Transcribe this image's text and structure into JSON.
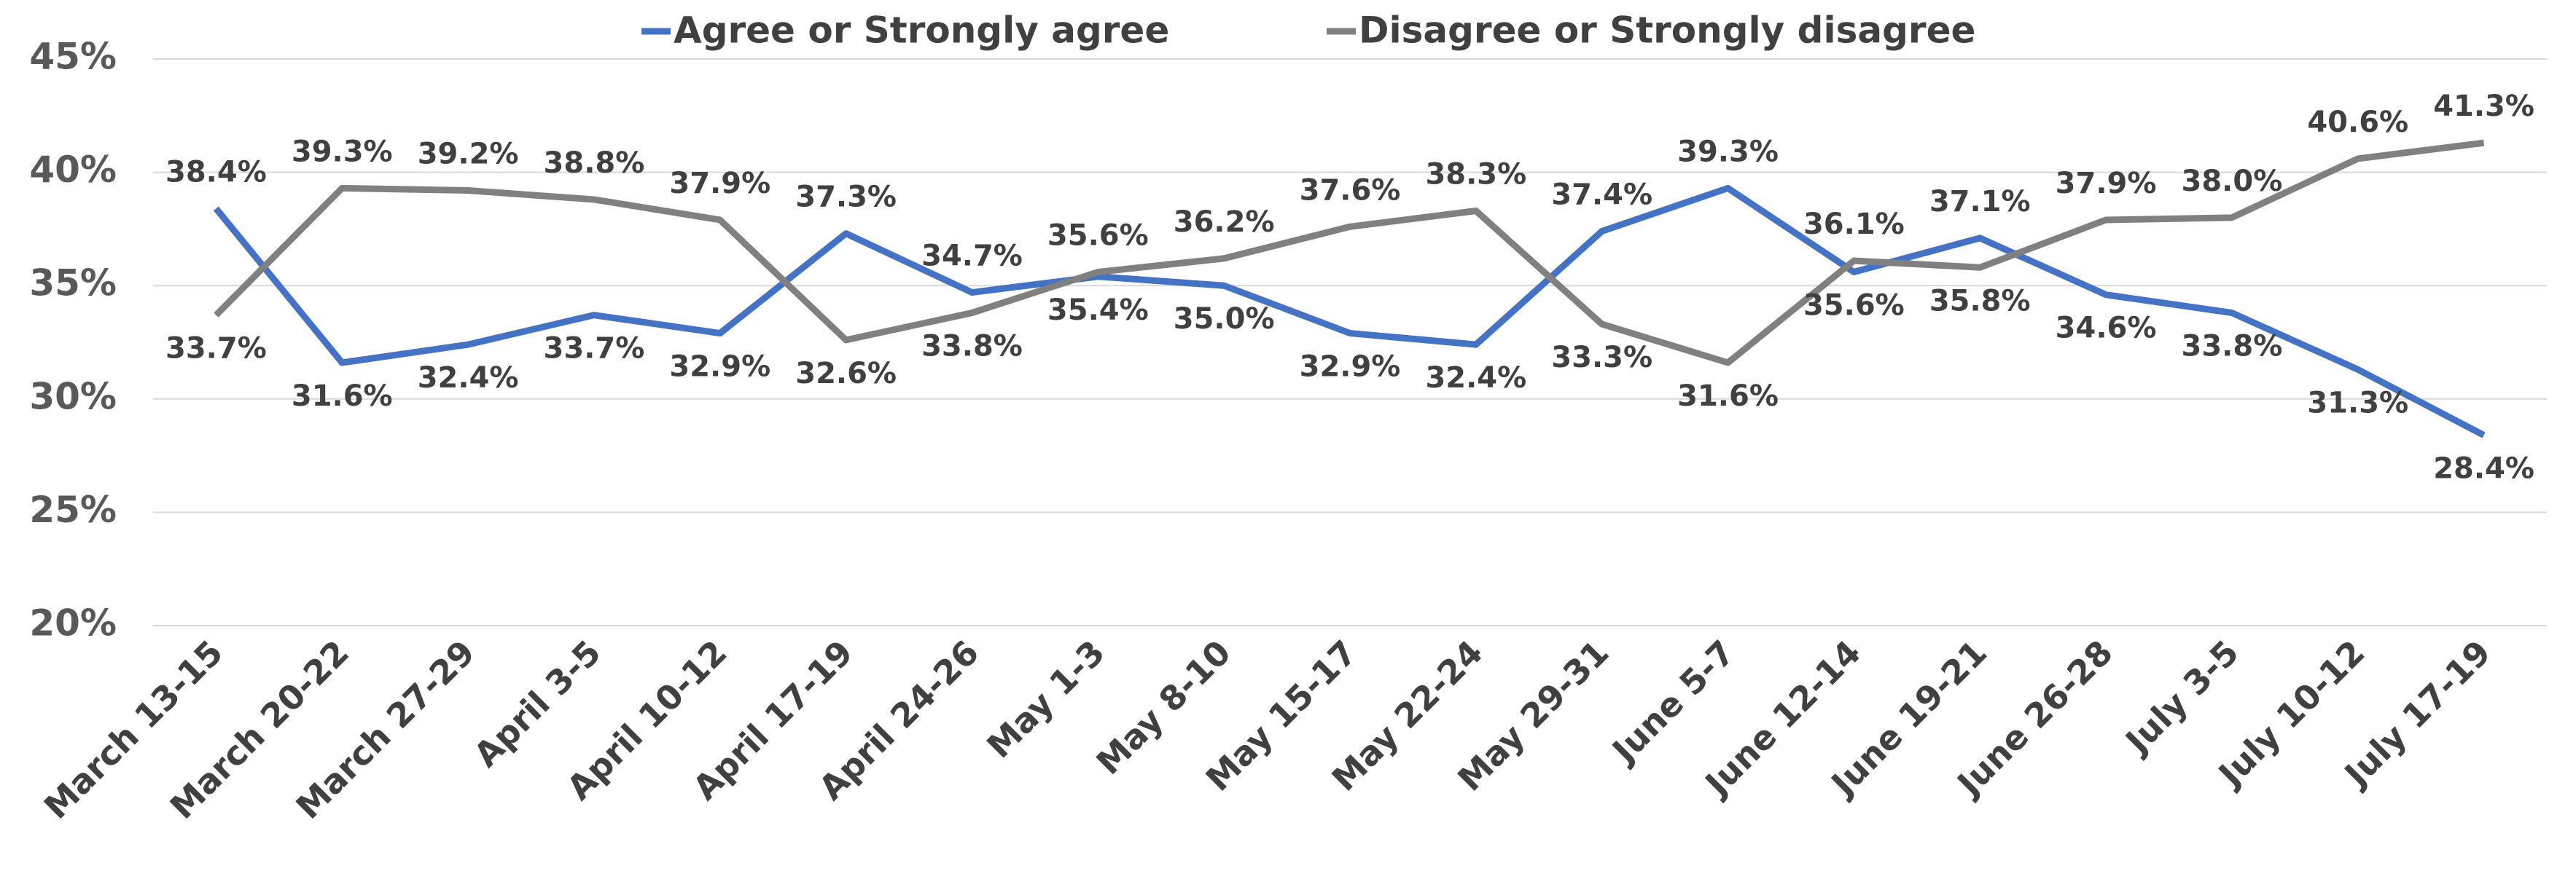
{
  "chart_data": {
    "type": "line",
    "categories": [
      "March 13-15",
      "March 20-22",
      "March 27-29",
      "April 3-5",
      "April 10-12",
      "April 17-19",
      "April 24-26",
      "May 1-3",
      "May 8-10",
      "May 15-17",
      "May 22-24",
      "May 29-31",
      "June 5-7",
      "June 12-14",
      "June 19-21",
      "June 26-28",
      "July 3-5",
      "July 10-12",
      "July 17-19"
    ],
    "series": [
      {
        "name": "Agree or Strongly agree",
        "color": "#4472c4",
        "values": [
          38.4,
          31.6,
          32.4,
          33.7,
          32.9,
          37.3,
          34.7,
          35.4,
          35.0,
          32.9,
          32.4,
          37.4,
          39.3,
          35.6,
          37.1,
          34.6,
          33.8,
          31.3,
          28.4
        ],
        "value_labels": [
          "38.4%",
          "31.6%",
          "32.4%",
          "33.7%",
          "32.9%",
          "37.3%",
          "34.7%",
          "35.4%",
          "35.0%",
          "32.9%",
          "32.4%",
          "37.4%",
          "39.3%",
          "35.6%",
          "37.1%",
          "34.6%",
          "33.8%",
          "31.3%",
          "28.4%"
        ]
      },
      {
        "name": "Disagree or Strongly disagree",
        "color": "#808080",
        "values": [
          33.7,
          39.3,
          39.2,
          38.8,
          37.9,
          32.6,
          33.8,
          35.6,
          36.2,
          37.6,
          38.3,
          33.3,
          31.6,
          36.1,
          35.8,
          37.9,
          38.0,
          40.6,
          41.3
        ],
        "value_labels": [
          "33.7%",
          "39.3%",
          "39.2%",
          "38.8%",
          "37.9%",
          "32.6%",
          "33.8%",
          "35.6%",
          "36.2%",
          "37.6%",
          "38.3%",
          "33.3%",
          "31.6%",
          "36.1%",
          "35.8%",
          "37.9%",
          "38.0%",
          "40.6%",
          "41.3%"
        ]
      }
    ],
    "ylim": [
      20,
      45
    ],
    "yticks": [
      {
        "value": 20,
        "label": "20%"
      },
      {
        "value": 25,
        "label": "25%"
      },
      {
        "value": 30,
        "label": "30%"
      },
      {
        "value": 35,
        "label": "35%"
      },
      {
        "value": 40,
        "label": "40%"
      },
      {
        "value": 45,
        "label": "45%"
      }
    ],
    "grid": true,
    "legend": "top"
  }
}
